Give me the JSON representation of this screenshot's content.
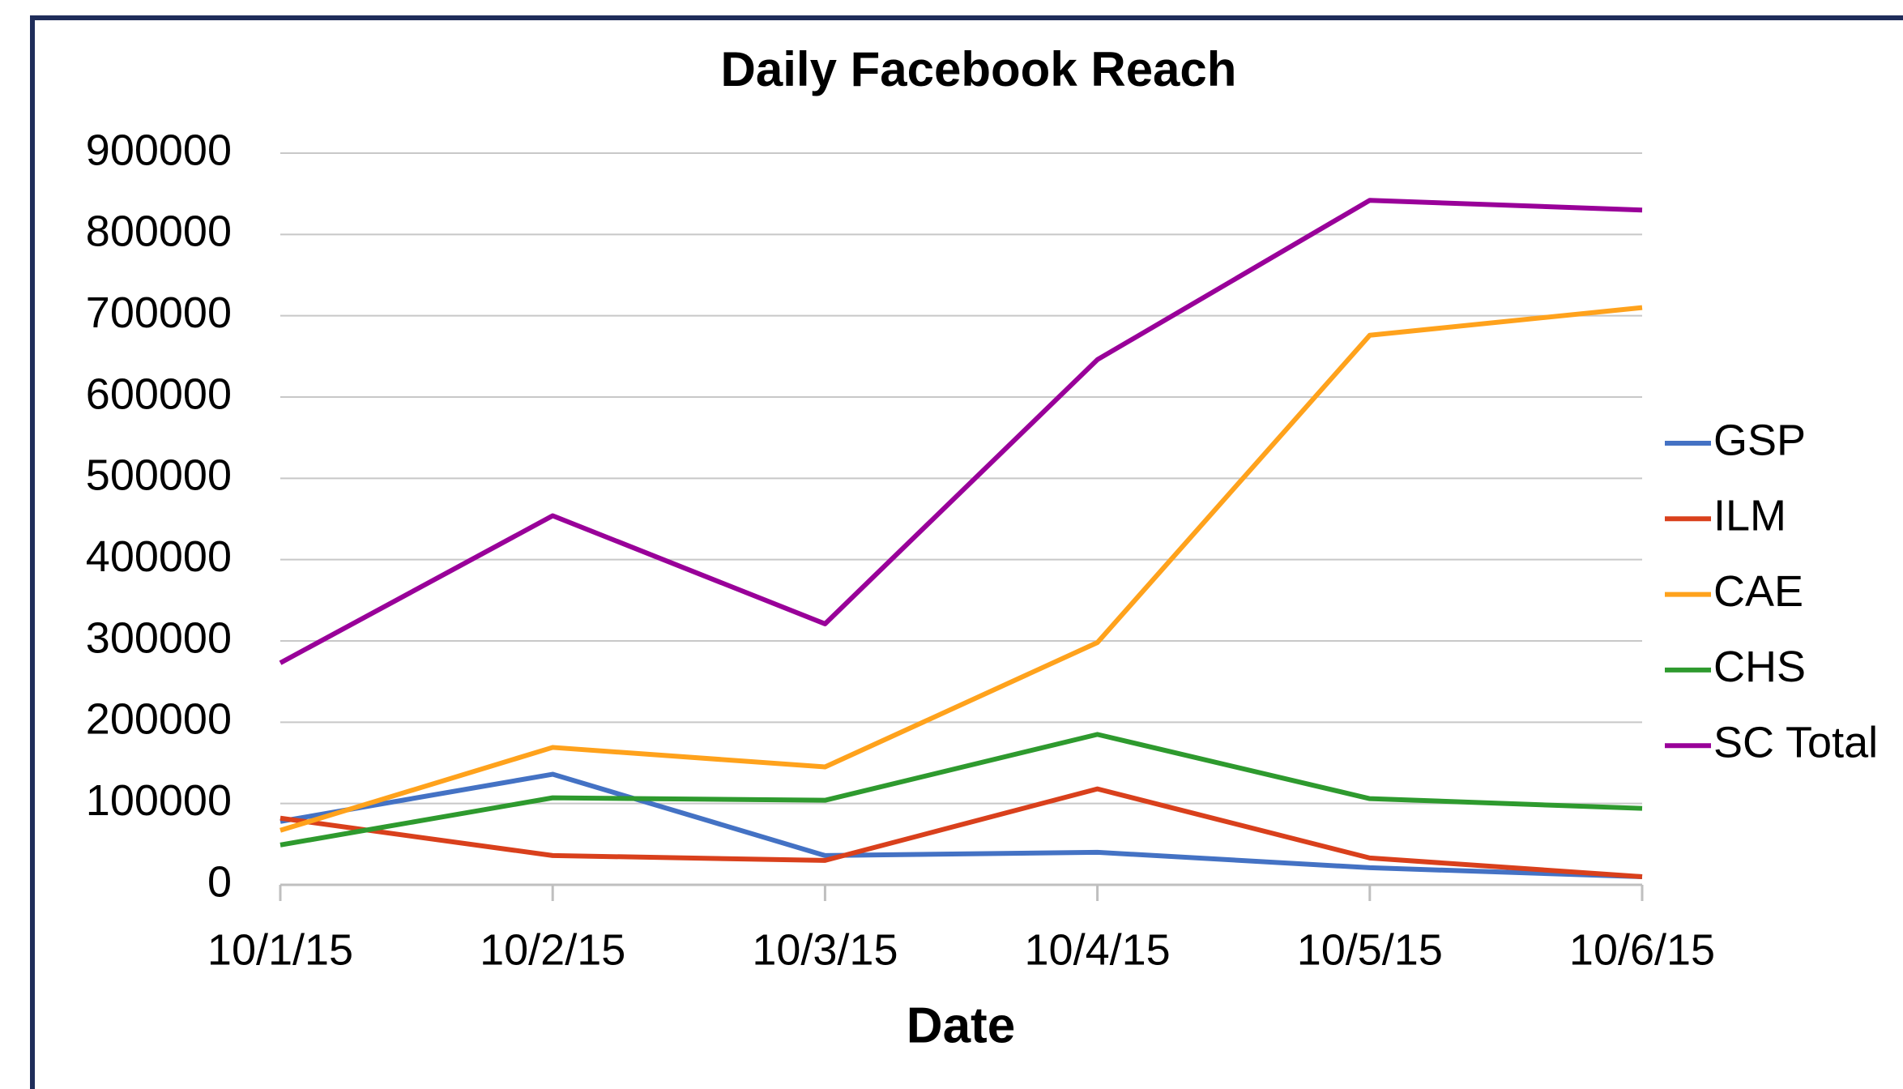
{
  "chart_data": {
    "type": "line",
    "title": "Daily Facebook Reach",
    "x_label": "Date",
    "categories": [
      "10/1/15",
      "10/2/15",
      "10/3/15",
      "10/4/15",
      "10/5/15",
      "10/6/15"
    ],
    "series": [
      {
        "name": "GSP",
        "color": "#4472c4",
        "values": [
          78000,
          136000,
          36000,
          40000,
          21000,
          10000
        ]
      },
      {
        "name": "ILM",
        "color": "#d9401c",
        "values": [
          82000,
          36000,
          30000,
          118000,
          33000,
          10000
        ]
      },
      {
        "name": "CAE",
        "color": "#ffa21c",
        "values": [
          67000,
          169000,
          145000,
          298000,
          676000,
          710000
        ]
      },
      {
        "name": "CHS",
        "color": "#2e9a2e",
        "values": [
          49000,
          107000,
          104000,
          185000,
          106000,
          94000
        ]
      },
      {
        "name": "SC Total",
        "color": "#990099",
        "values": [
          273000,
          454000,
          321000,
          646000,
          842000,
          830000
        ]
      }
    ],
    "ylim": [
      0,
      900000
    ],
    "yticks": [
      0,
      100000,
      200000,
      300000,
      400000,
      500000,
      600000,
      700000,
      800000,
      900000
    ],
    "grid": true,
    "legend": "right"
  }
}
